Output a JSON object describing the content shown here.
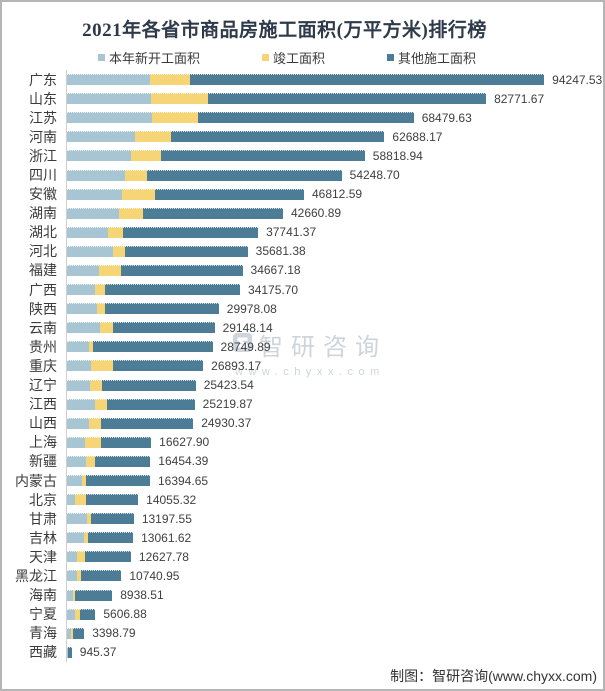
{
  "title": "2021年各省市商品房施工面积(万平方米)排行榜",
  "footer_credit": "制图：智研咨询(www.chyxx.com)",
  "watermark": {
    "brand": "智研咨询",
    "site": "www.chyxx.com",
    "logo_color": "#cdd5de"
  },
  "colors": {
    "new_start": "#a8c5d4",
    "completed": "#f5d576",
    "other": "#4d7c96",
    "axis_line": "#cfcfcf",
    "title_text": "#2e3a4a",
    "label_text": "#3b3b3b"
  },
  "chart_data": {
    "type": "bar",
    "orientation": "horizontal",
    "stacked": true,
    "unit": "万平方米",
    "legend_position": "top",
    "grid": false,
    "xlim": [
      0,
      94247.53
    ],
    "categories": [
      "广东",
      "山东",
      "江苏",
      "河南",
      "浙江",
      "四川",
      "安徽",
      "湖南",
      "湖北",
      "河北",
      "福建",
      "广西",
      "陕西",
      "云南",
      "贵州",
      "重庆",
      "辽宁",
      "江西",
      "山西",
      "上海",
      "新疆",
      "内蒙古",
      "北京",
      "甘肃",
      "吉林",
      "天津",
      "黑龙江",
      "海南",
      "宁夏",
      "青海",
      "西藏"
    ],
    "totals": [
      94247.53,
      82771.67,
      68479.63,
      62688.17,
      58818.94,
      54248.7,
      46812.59,
      42660.89,
      37741.37,
      35681.38,
      34667.18,
      34175.7,
      29978.08,
      29148.14,
      28749.89,
      26893.17,
      25423.54,
      25219.87,
      24930.37,
      16627.9,
      16454.39,
      16394.65,
      14055.32,
      13197.55,
      13061.62,
      12627.78,
      10740.95,
      8938.51,
      5606.88,
      3398.79,
      945.37
    ],
    "total_label_decimals": 2,
    "series": [
      {
        "name": "本年新开工面积",
        "color": "#a8c5d4",
        "values": [
          16300,
          16600,
          16800,
          13500,
          12600,
          11500,
          10800,
          10300,
          8000,
          9000,
          6400,
          5500,
          5900,
          6600,
          4300,
          4800,
          4600,
          5600,
          4400,
          3500,
          3800,
          2900,
          1600,
          3900,
          3300,
          2000,
          1900,
          1100,
          1600,
          800,
          100
        ]
      },
      {
        "name": "竣工面积",
        "color": "#f5d576",
        "values": [
          7900,
          11200,
          9100,
          7000,
          5900,
          4400,
          6600,
          4700,
          3100,
          2500,
          4200,
          2100,
          1700,
          2400,
          900,
          4300,
          2300,
          2300,
          2400,
          3200,
          1800,
          900,
          2100,
          900,
          800,
          1500,
          900,
          500,
          900,
          300,
          80
        ]
      },
      {
        "name": "其他施工面积",
        "color": "#4d7c96",
        "values": [
          70047.53,
          54971.67,
          42579.63,
          42188.17,
          40318.94,
          38348.7,
          29412.59,
          27660.89,
          26641.37,
          24181.38,
          24067.18,
          26575.7,
          22378.08,
          20148.14,
          23549.89,
          17793.17,
          18523.54,
          17319.87,
          18130.37,
          9927.9,
          10854.39,
          12594.65,
          10355.32,
          8397.55,
          8961.62,
          9127.78,
          7940.95,
          7338.51,
          3106.88,
          2298.79,
          765.37
        ]
      }
    ]
  }
}
